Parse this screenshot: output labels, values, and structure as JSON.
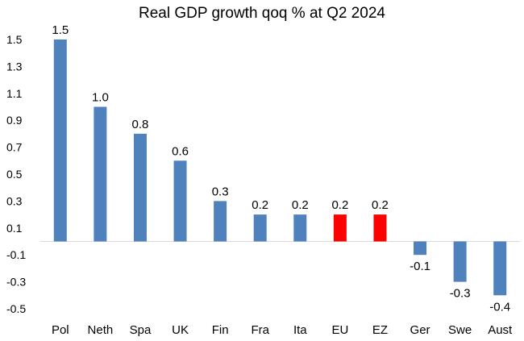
{
  "chart_data": {
    "type": "bar",
    "title": "Real GDP growth qoq % at Q2 2024",
    "xlabel": "",
    "ylabel": "",
    "categories": [
      "Pol",
      "Neth",
      "Spa",
      "UK",
      "Fin",
      "Fra",
      "Ita",
      "EU",
      "EZ",
      "Ger",
      "Swe",
      "Aust"
    ],
    "values": [
      1.5,
      1.0,
      0.8,
      0.6,
      0.3,
      0.2,
      0.2,
      0.2,
      0.2,
      -0.1,
      -0.3,
      -0.4
    ],
    "data_labels": [
      "1.5",
      "1.0",
      "0.8",
      "0.6",
      "0.3",
      "0.2",
      "0.2",
      "0.2",
      "0.2",
      "-0.1",
      "-0.3",
      "-0.4"
    ],
    "y_ticks": [
      1.5,
      1.3,
      1.1,
      0.9,
      0.7,
      0.5,
      0.3,
      0.1,
      -0.1,
      -0.3,
      -0.5
    ],
    "y_tick_labels": [
      "1.5",
      "1.3",
      "1.1",
      "0.9",
      "0.7",
      "0.5",
      "0.3",
      "0.1",
      "-0.1",
      "-0.3",
      "-0.5"
    ],
    "ylim": [
      -0.5,
      1.5
    ],
    "grid": false,
    "legend": "none",
    "colors": {
      "default": "#4F81BD",
      "highlight": "#FF0000",
      "axis": "#D9D9D9"
    },
    "highlighted_categories": [
      "EU",
      "EZ"
    ]
  }
}
